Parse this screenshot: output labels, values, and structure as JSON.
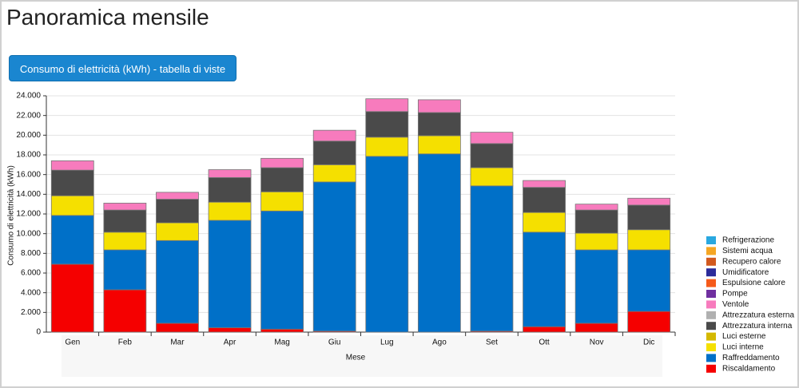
{
  "header": {
    "title": "Panoramica mensile"
  },
  "button": {
    "label": "Consumo di elettricità (kWh) - tabella di viste"
  },
  "chart_data": {
    "type": "bar",
    "stacked": true,
    "grid": true,
    "x_label": "Mese",
    "y_label": "Consumo di elettricità (kWh)",
    "categories": [
      "Gen",
      "Feb",
      "Mar",
      "Apr",
      "Mag",
      "Giu",
      "Lug",
      "Ago",
      "Set",
      "Ott",
      "Nov",
      "Dic"
    ],
    "ylim": [
      0,
      24000
    ],
    "yticks": [
      0,
      {
        "value": 2000,
        "label": "2.000"
      },
      {
        "value": 4000,
        "label": "4.000"
      },
      {
        "value": 6000,
        "label": "6.000"
      },
      {
        "value": 8000,
        "label": "8.000"
      },
      {
        "value": 10000,
        "label": "10.000"
      },
      {
        "value": 12000,
        "label": "12.000"
      },
      {
        "value": 14000,
        "label": "14.000"
      },
      {
        "value": 16000,
        "label": "16.000"
      },
      {
        "value": 18000,
        "label": "18.000"
      },
      {
        "value": 20000,
        "label": "20.000"
      },
      {
        "value": 22000,
        "label": "22.000"
      },
      {
        "value": 24000,
        "label": "24.000"
      }
    ],
    "series": [
      {
        "name": "Riscaldamento",
        "color": "#f50000",
        "values": [
          6900,
          4300,
          900,
          450,
          300,
          100,
          0,
          0,
          100,
          550,
          900,
          2100
        ]
      },
      {
        "name": "Raffreddamento",
        "color": "#0070c8",
        "values": [
          4950,
          4050,
          8400,
          10900,
          12000,
          15150,
          17850,
          18100,
          14750,
          9600,
          7450,
          6250
        ]
      },
      {
        "name": "Luci interne",
        "color": "#f5e000",
        "values": [
          2000,
          1800,
          1800,
          1850,
          1950,
          1750,
          1950,
          1850,
          1850,
          2000,
          1700,
          2050
        ]
      },
      {
        "name": "Luci esterne",
        "color": "#d4b800",
        "values": [
          0,
          0,
          0,
          0,
          0,
          0,
          0,
          0,
          0,
          0,
          0,
          0
        ]
      },
      {
        "name": "Attrezzatura interna",
        "color": "#4a4a4a",
        "values": [
          2600,
          2250,
          2400,
          2500,
          2450,
          2400,
          2600,
          2350,
          2450,
          2550,
          2350,
          2500
        ]
      },
      {
        "name": "Attrezzatura esterna",
        "color": "#b0b0b0",
        "values": [
          0,
          0,
          0,
          0,
          0,
          0,
          0,
          0,
          0,
          0,
          0,
          0
        ]
      },
      {
        "name": "Ventole",
        "color": "#f77bbd",
        "values": [
          950,
          700,
          700,
          800,
          950,
          1100,
          1300,
          1300,
          1150,
          700,
          600,
          700
        ]
      },
      {
        "name": "Pompe",
        "color": "#7030a0",
        "values": [
          0,
          0,
          0,
          0,
          0,
          0,
          0,
          0,
          0,
          0,
          0,
          0
        ]
      },
      {
        "name": "Espulsione calore",
        "color": "#f55a1a",
        "values": [
          0,
          0,
          0,
          0,
          0,
          0,
          0,
          0,
          0,
          0,
          0,
          0
        ]
      },
      {
        "name": "Umidificatore",
        "color": "#2b2b9a",
        "values": [
          0,
          0,
          0,
          0,
          0,
          0,
          0,
          0,
          0,
          0,
          0,
          0
        ]
      },
      {
        "name": "Recupero calore",
        "color": "#d2591e",
        "values": [
          0,
          0,
          0,
          0,
          0,
          0,
          0,
          0,
          0,
          0,
          0,
          0
        ]
      },
      {
        "name": "Sistemi acqua",
        "color": "#f5a623",
        "values": [
          0,
          0,
          0,
          0,
          0,
          0,
          0,
          0,
          0,
          0,
          0,
          0
        ]
      },
      {
        "name": "Refrigerazione",
        "color": "#29a8e0",
        "values": [
          0,
          0,
          0,
          0,
          0,
          0,
          0,
          0,
          0,
          0,
          0,
          0
        ]
      }
    ]
  }
}
